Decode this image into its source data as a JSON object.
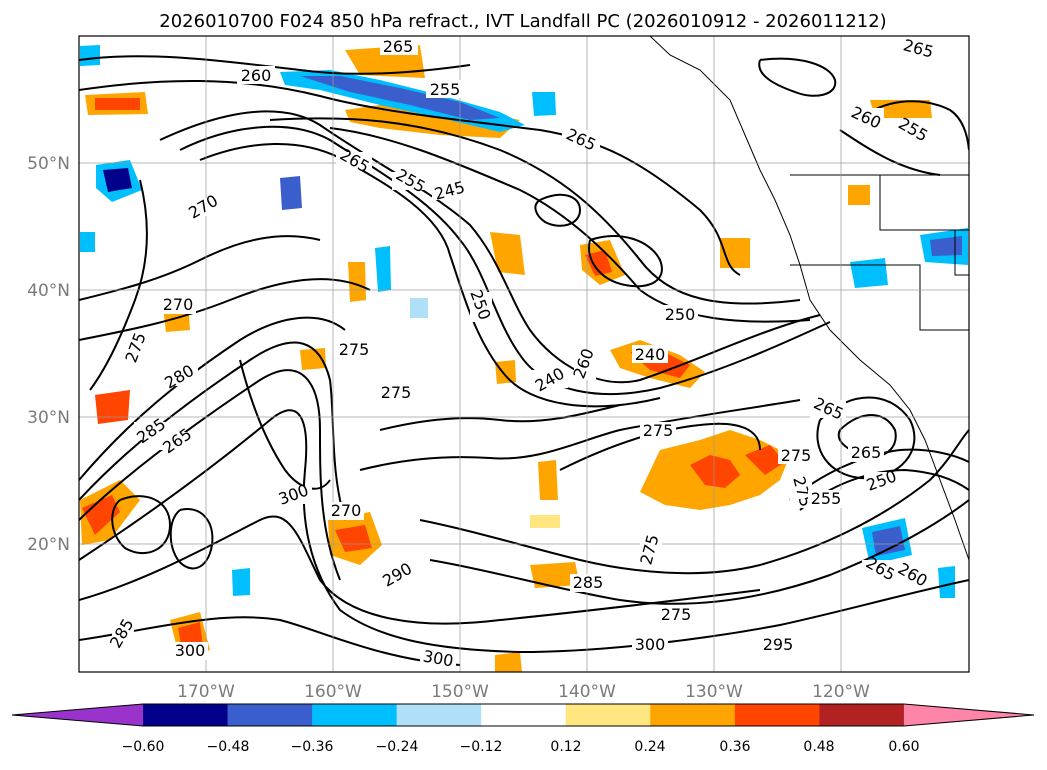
{
  "title": "2026010700 F024 850 hPa refract., IVT Landfall PC (2026010912 - 2026011212)",
  "map": {
    "lat_labels": [
      "50°N",
      "40°N",
      "30°N",
      "20°N"
    ],
    "lon_labels": [
      "170°W",
      "160°W",
      "150°W",
      "140°W",
      "130°W",
      "120°W"
    ],
    "contour_labels": [
      "265",
      "260",
      "255",
      "265",
      "260",
      "255",
      "265",
      "255",
      "245",
      "265",
      "270",
      "270",
      "275",
      "250",
      "250",
      "240",
      "240",
      "275",
      "275",
      "260",
      "280",
      "285",
      "265",
      "275",
      "275",
      "265",
      "275",
      "265",
      "255",
      "250",
      "300",
      "270",
      "290",
      "275",
      "285",
      "275",
      "300",
      "295",
      "265",
      "260",
      "300",
      "285",
      "300"
    ]
  },
  "colorbar": {
    "ticks": [
      "−0.60",
      "−0.48",
      "−0.36",
      "−0.24",
      "−0.12",
      "0.12",
      "0.24",
      "0.36",
      "0.48",
      "0.60"
    ],
    "colors": [
      "#9933cc",
      "#00008b",
      "#3a5fcd",
      "#00bfff",
      "#b0e0f8",
      "#ffffff",
      "#ffe680",
      "#ffa500",
      "#ff4500",
      "#b22222",
      "#ff85a8"
    ]
  }
}
